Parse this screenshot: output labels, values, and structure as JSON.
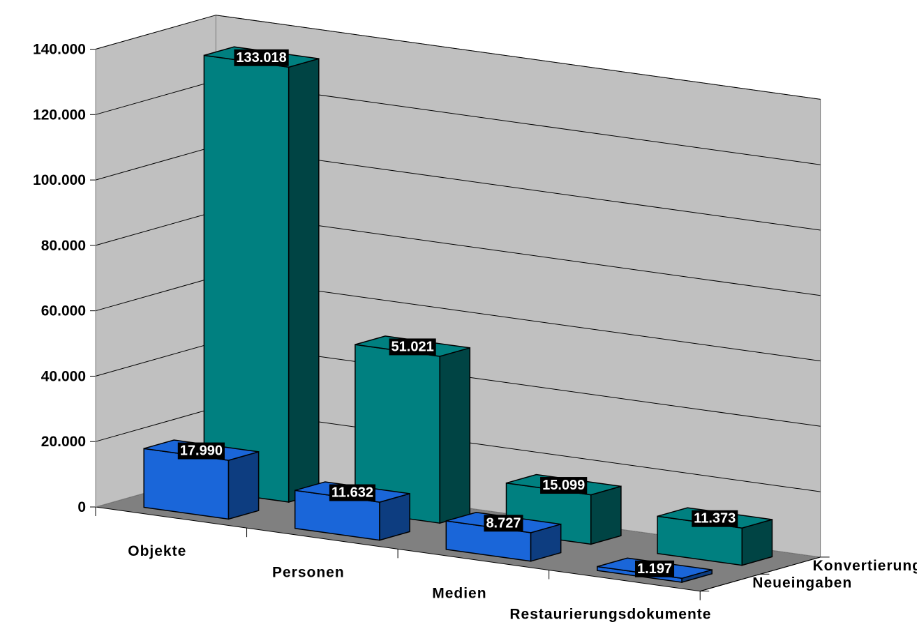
{
  "chart_data": {
    "type": "bar",
    "title": "",
    "xlabel": "",
    "ylabel": "",
    "categories": [
      "Objekte",
      "Personen",
      "Medien",
      "Restaurierungsdokumente"
    ],
    "series": [
      {
        "name": "Neueingaben",
        "values": [
          17990,
          11632,
          8727,
          1197
        ],
        "value_labels": [
          "17.990",
          "11.632",
          "8.727",
          "1.197"
        ],
        "color": "#1a66d9"
      },
      {
        "name": "Konvertierungen",
        "values": [
          133018,
          51021,
          15099,
          11373
        ],
        "value_labels": [
          "133.018",
          "51.021",
          "15.099",
          "11.373"
        ],
        "color": "#008080"
      }
    ],
    "ylim": [
      0,
      140000
    ],
    "yticks": [
      0,
      20000,
      40000,
      60000,
      80000,
      100000,
      120000,
      140000
    ],
    "ytick_labels": [
      "0",
      "20.000",
      "40.000",
      "60.000",
      "80.000",
      "100.000",
      "120.000",
      "140.000"
    ],
    "grid": true,
    "legend": "depth-axis labels on the right",
    "colors": {
      "back_wall": "#c0c0c0",
      "floor": "#808080",
      "neueingaben_front": "#1a66d9",
      "neueingaben_side": "#0d3d80",
      "konvertierungen_front": "#008080",
      "konvertierungen_side": "#004444",
      "label_box": "#000000",
      "label_text": "#ffffff"
    }
  }
}
